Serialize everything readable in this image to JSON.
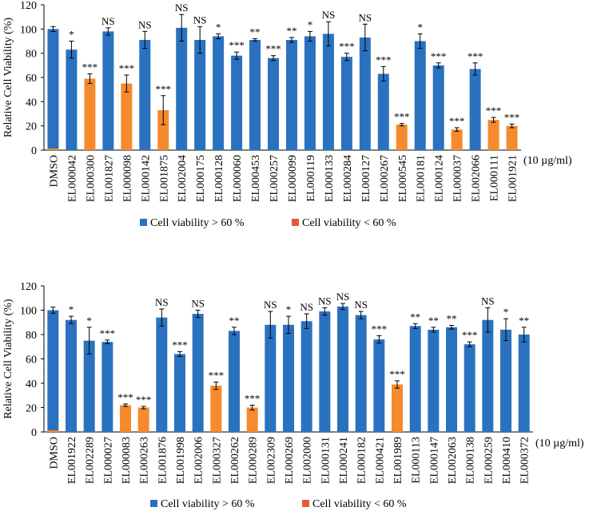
{
  "colors": {
    "high": "#2a72c0",
    "low": "#f58a2e",
    "legend_low": "#e05a3a",
    "axis": "#000000",
    "error": "#000000"
  },
  "chart_data": [
    {
      "type": "bar",
      "ylabel": "Relative Cell Viability (%)",
      "ylim": [
        0,
        120
      ],
      "yticks": [
        0,
        20,
        40,
        60,
        80,
        100,
        120
      ],
      "unit_label": "(10 µg/ml)",
      "legend": {
        "position": "bottom",
        "items": [
          "Cell viability > 60 %",
          "Cell viability < 60 %"
        ]
      },
      "categories": [
        "DMSO",
        "EL000042",
        "EL000300",
        "EL001827",
        "EL000098",
        "EL000142",
        "EL001875",
        "EL002004",
        "EL000175",
        "EL000128",
        "EL000060",
        "EL000453",
        "EL000257",
        "EL000099",
        "EL000119",
        "EL000133",
        "EL000284",
        "EL000127",
        "EL000267",
        "EL000545",
        "EL000181",
        "EL000124",
        "EL000037",
        "EL002066",
        "EL000111",
        "EL001921"
      ],
      "values": [
        100,
        83,
        59,
        98,
        55,
        91,
        33,
        101,
        91,
        94,
        78,
        91,
        76,
        91,
        94,
        96,
        77,
        93,
        63,
        21,
        90,
        70,
        17,
        67,
        25,
        20
      ],
      "errors": [
        2,
        7,
        4,
        3,
        7,
        7,
        12,
        11,
        11,
        2,
        3,
        1,
        2,
        2,
        4,
        10,
        3,
        11,
        6,
        1,
        6,
        2,
        1.5,
        5,
        2,
        1.5
      ],
      "group": [
        "high",
        "high",
        "low",
        "high",
        "low",
        "high",
        "low",
        "high",
        "high",
        "high",
        "high",
        "high",
        "high",
        "high",
        "high",
        "high",
        "high",
        "high",
        "high",
        "low",
        "high",
        "high",
        "low",
        "high",
        "low",
        "low"
      ],
      "significance": [
        "",
        "*",
        "***",
        "NS",
        "***",
        "NS",
        "***",
        "NS",
        "NS",
        "*",
        "***",
        "**",
        "***",
        "**",
        "*",
        "NS",
        "***",
        "NS",
        "***",
        "***",
        "*",
        "***",
        "***",
        "***",
        "***",
        "***"
      ]
    },
    {
      "type": "bar",
      "ylabel": "Relative Cell Viability (%)",
      "ylim": [
        0,
        120
      ],
      "yticks": [
        0,
        20,
        40,
        60,
        80,
        100,
        120
      ],
      "unit_label": "(10 µg/ml)",
      "legend": {
        "position": "bottom",
        "items": [
          "Cell viability > 60 %",
          "Cell viability < 60 %"
        ]
      },
      "categories": [
        "DMSO",
        "EL001922",
        "EL002289",
        "EL000027",
        "EL000083",
        "EL000263",
        "EL001876",
        "EL001998",
        "EL002006",
        "EL000327",
        "EL000262",
        "EL000289",
        "EL002309",
        "EL000269",
        "EL002000",
        "EL000131",
        "EL000241",
        "EL000182",
        "EL000421",
        "EL001989",
        "EL000113",
        "EL000147",
        "EL002063",
        "EL000138",
        "EL000259",
        "EL000410",
        "EL000372"
      ],
      "values": [
        100,
        92,
        75,
        74,
        22,
        20,
        94,
        64,
        97,
        38,
        83,
        20,
        88,
        88,
        91,
        99,
        103,
        96,
        76,
        39,
        87,
        84,
        86,
        72,
        92,
        84,
        80
      ],
      "errors": [
        2.5,
        3,
        11,
        1.5,
        1,
        1,
        7,
        2,
        3,
        3,
        3,
        2,
        11,
        7,
        6,
        3,
        2.5,
        3,
        3,
        3,
        2,
        2,
        1.5,
        2,
        10,
        9,
        6
      ],
      "group": [
        "high",
        "high",
        "high",
        "high",
        "low",
        "low",
        "high",
        "high",
        "high",
        "low",
        "high",
        "low",
        "high",
        "high",
        "high",
        "high",
        "high",
        "high",
        "high",
        "low",
        "high",
        "high",
        "high",
        "high",
        "high",
        "high",
        "high"
      ],
      "significance": [
        "",
        "*",
        "*",
        "***",
        "***",
        "***",
        "NS",
        "***",
        "NS",
        "***",
        "**",
        "***",
        "NS",
        "*",
        "NS",
        "NS",
        "NS",
        "NS",
        "***",
        "***",
        "**",
        "**",
        "**",
        "***",
        "NS",
        "*",
        "**"
      ]
    }
  ]
}
